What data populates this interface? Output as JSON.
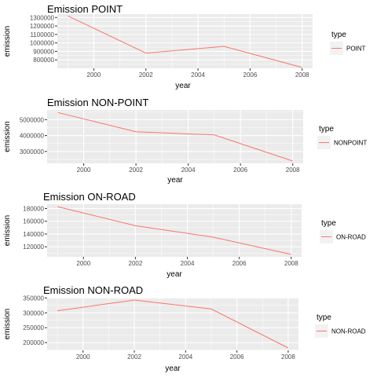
{
  "chart_data": [
    {
      "type": "line",
      "title": "Emission POINT",
      "xlabel": "year",
      "ylabel": "emission",
      "x": [
        1999,
        2002,
        2005,
        2008
      ],
      "series": [
        {
          "name": "POINT",
          "values": [
            1320000,
            880000,
            960000,
            710000
          ]
        }
      ],
      "xlim": [
        1998.6,
        2008.4
      ],
      "ylim": [
        700000,
        1340000
      ],
      "xticks": [
        2000,
        2002,
        2004,
        2006,
        2008
      ],
      "xtick_labels": [
        "2000",
        "2002",
        "2004",
        "2006",
        "2008"
      ],
      "yticks": [
        800000,
        900000,
        1000000,
        1100000,
        1200000,
        1300000
      ],
      "ytick_labels": [
        "800000",
        "900000",
        "1000000",
        "1100000",
        "1200000",
        "1300000"
      ],
      "legend_title": "type",
      "legend_position": "right",
      "grid": true
    },
    {
      "type": "line",
      "title": "Emission NON-POINT",
      "xlabel": "year",
      "ylabel": "emission",
      "x": [
        1999,
        2002,
        2005,
        2008
      ],
      "series": [
        {
          "name": "NONPOINT",
          "values": [
            5450000,
            4240000,
            4040000,
            2400000
          ]
        }
      ],
      "xlim": [
        1998.6,
        2008.4
      ],
      "ylim": [
        2250000,
        5610000
      ],
      "xticks": [
        2000,
        2002,
        2004,
        2006,
        2008
      ],
      "xtick_labels": [
        "2000",
        "2002",
        "2004",
        "2006",
        "2008"
      ],
      "yticks": [
        3000000,
        4000000,
        5000000
      ],
      "ytick_labels": [
        "3000000",
        "4000000",
        "5000000"
      ],
      "legend_title": "type",
      "legend_position": "right",
      "grid": true
    },
    {
      "type": "line",
      "title": "Emission ON-ROAD",
      "xlabel": "year",
      "ylabel": "emission",
      "x": [
        1999,
        2002,
        2005,
        2008
      ],
      "series": [
        {
          "name": "ON-ROAD",
          "values": [
            183000,
            153000,
            135000,
            108000
          ]
        }
      ],
      "xlim": [
        1998.6,
        2008.4
      ],
      "ylim": [
        104200,
        186800
      ],
      "xticks": [
        2000,
        2002,
        2004,
        2006,
        2008
      ],
      "xtick_labels": [
        "2000",
        "2002",
        "2004",
        "2006",
        "2008"
      ],
      "yticks": [
        120000,
        140000,
        160000,
        180000
      ],
      "ytick_labels": [
        "120000",
        "140000",
        "160000",
        "180000"
      ],
      "legend_title": "type",
      "legend_position": "right",
      "grid": true
    },
    {
      "type": "line",
      "title": "Emission NON-ROAD",
      "xlabel": "year",
      "ylabel": "emission",
      "x": [
        1999,
        2002,
        2005,
        2008
      ],
      "series": [
        {
          "name": "NON-ROAD",
          "values": [
            307000,
            343000,
            313000,
            182000
          ]
        }
      ],
      "xlim": [
        1998.6,
        2008.4
      ],
      "ylim": [
        174000,
        351000
      ],
      "xticks": [
        2000,
        2002,
        2004,
        2006,
        2008
      ],
      "xtick_labels": [
        "2000",
        "2002",
        "2004",
        "2006",
        "2008"
      ],
      "yticks": [
        200000,
        250000,
        300000,
        350000
      ],
      "ytick_labels": [
        "200000",
        "250000",
        "300000",
        "350000"
      ],
      "legend_title": "type",
      "legend_position": "right",
      "grid": true
    }
  ],
  "colors": {
    "line": "#F8766D",
    "panel": "#EBEBEB",
    "grid": "#FFFFFF",
    "text": "#000000",
    "axis_text": "#4D4D4D"
  }
}
